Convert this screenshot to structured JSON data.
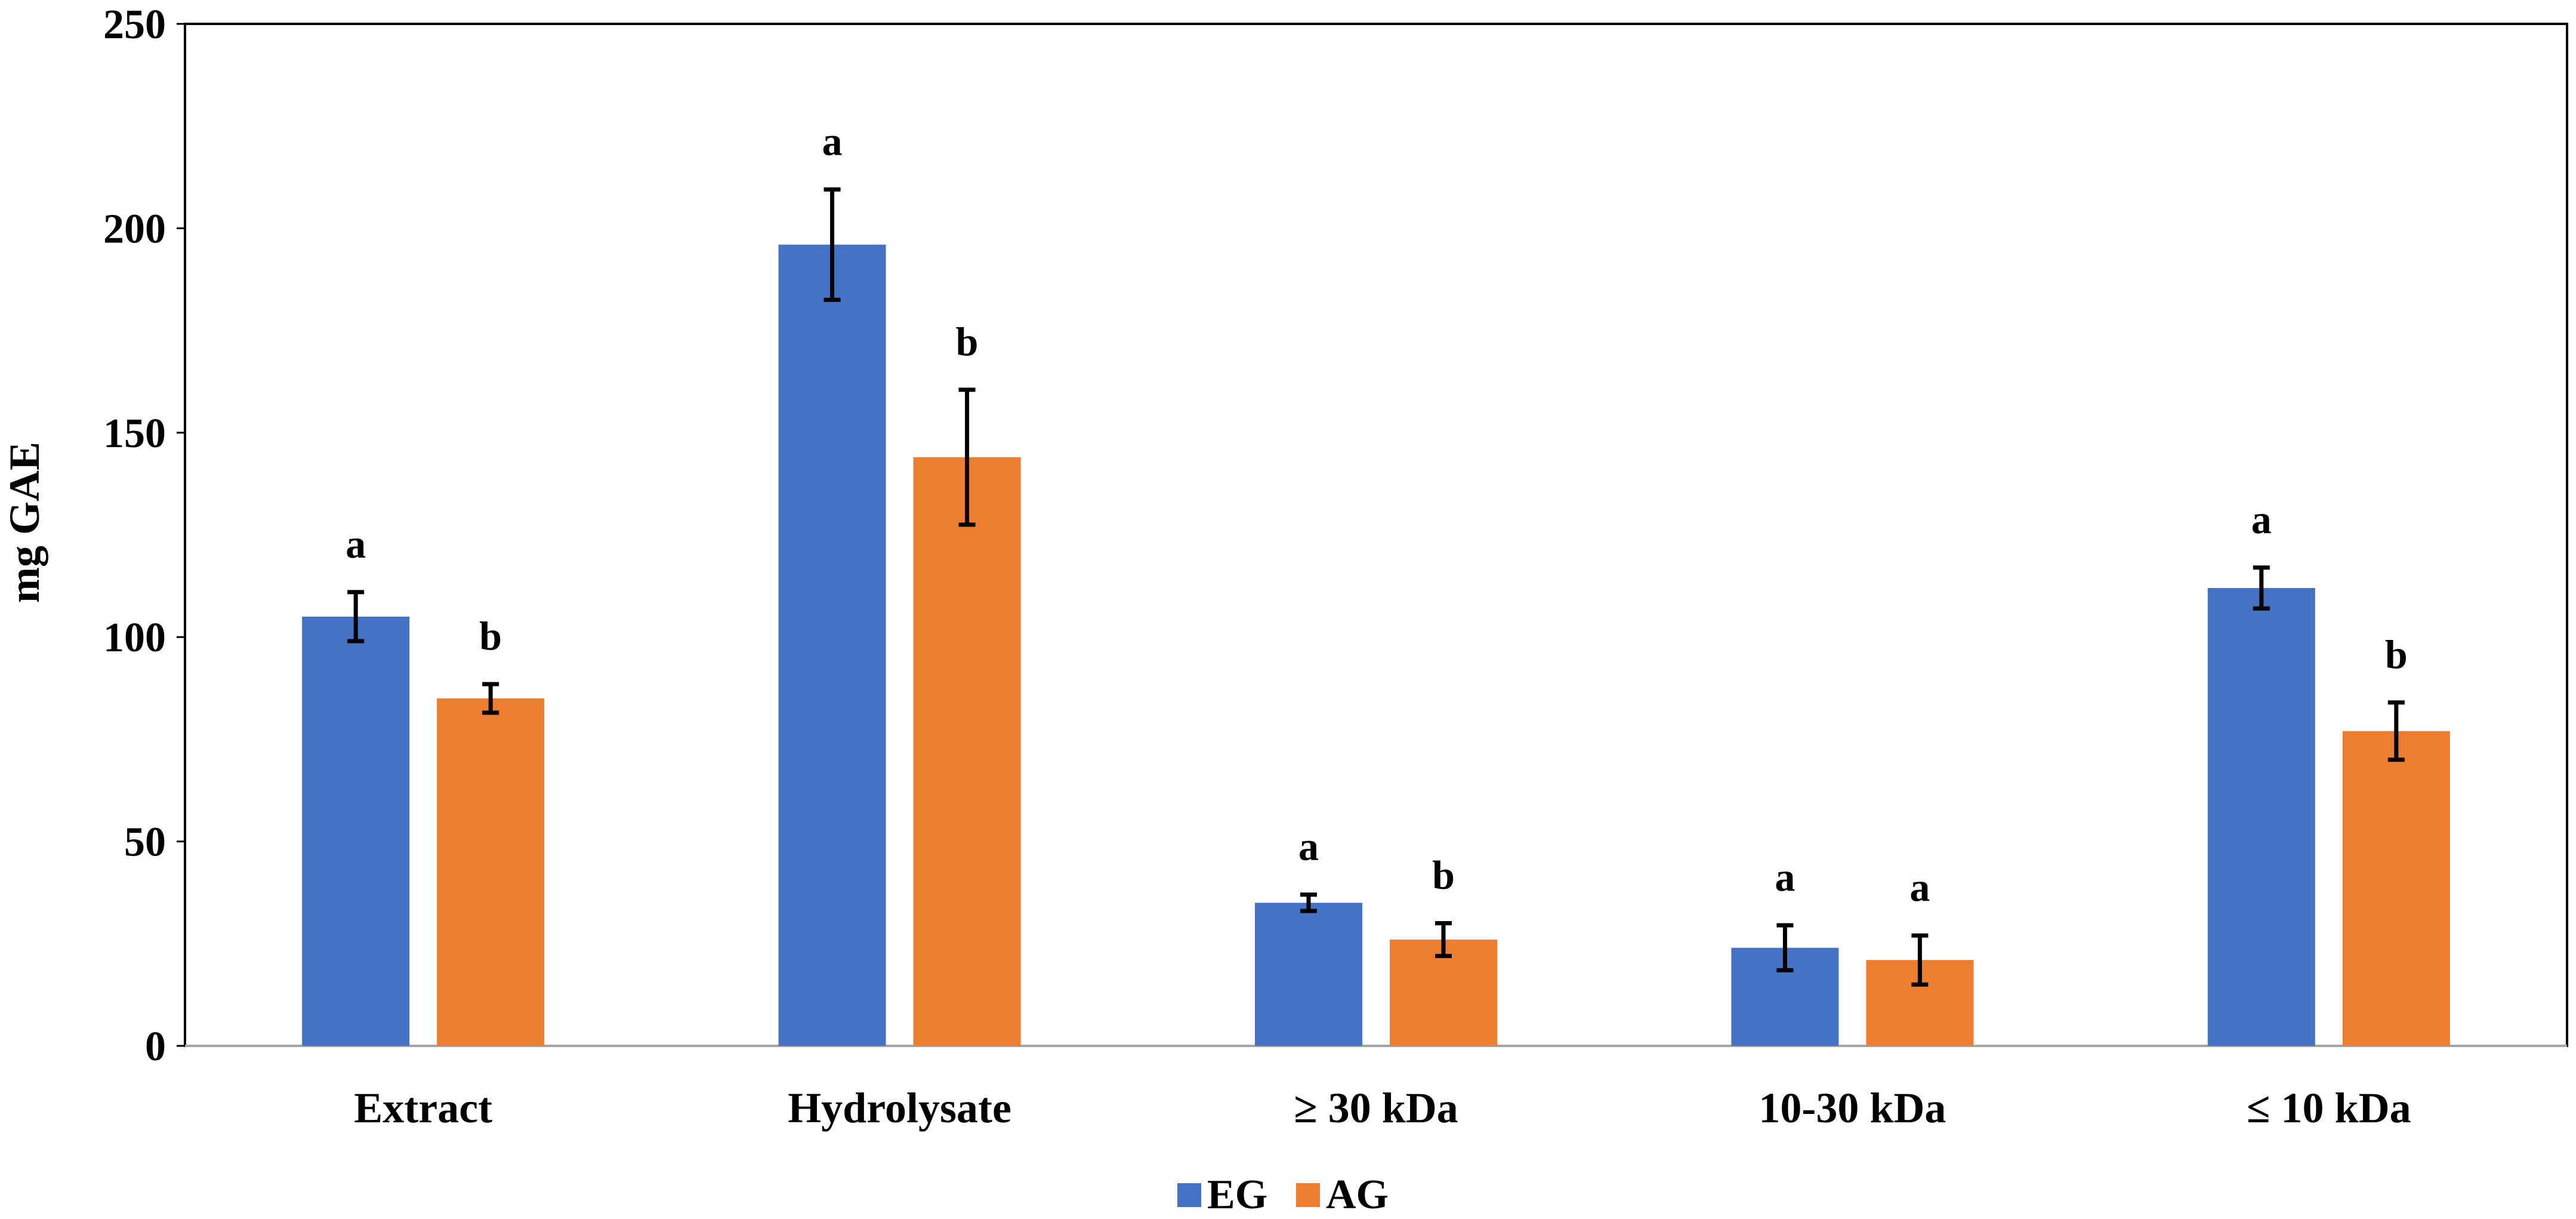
{
  "chart_data": {
    "type": "bar",
    "title": "",
    "xlabel": "",
    "ylabel": "mg GAE",
    "ylim": [
      0,
      250
    ],
    "yticks": [
      0,
      50,
      100,
      150,
      200,
      250
    ],
    "grid": false,
    "legend_position": "bottom-center",
    "categories": [
      "Extract",
      "Hydrolysate",
      "≥ 30 kDa",
      "10-30 kDa",
      "≤ 10 kDa"
    ],
    "series": [
      {
        "name": "EG",
        "color": "#4472C4",
        "values": [
          105,
          196,
          35,
          24,
          112
        ],
        "errors": [
          6,
          13.5,
          2,
          5.5,
          5
        ],
        "letters": [
          "a",
          "a",
          "a",
          "a",
          "a"
        ]
      },
      {
        "name": "AG",
        "color": "#ED7D31",
        "values": [
          85,
          144,
          26,
          21,
          77
        ],
        "errors": [
          3.5,
          16.5,
          4,
          6,
          7
        ],
        "letters": [
          "b",
          "b",
          "b",
          "a",
          "b"
        ]
      }
    ]
  }
}
